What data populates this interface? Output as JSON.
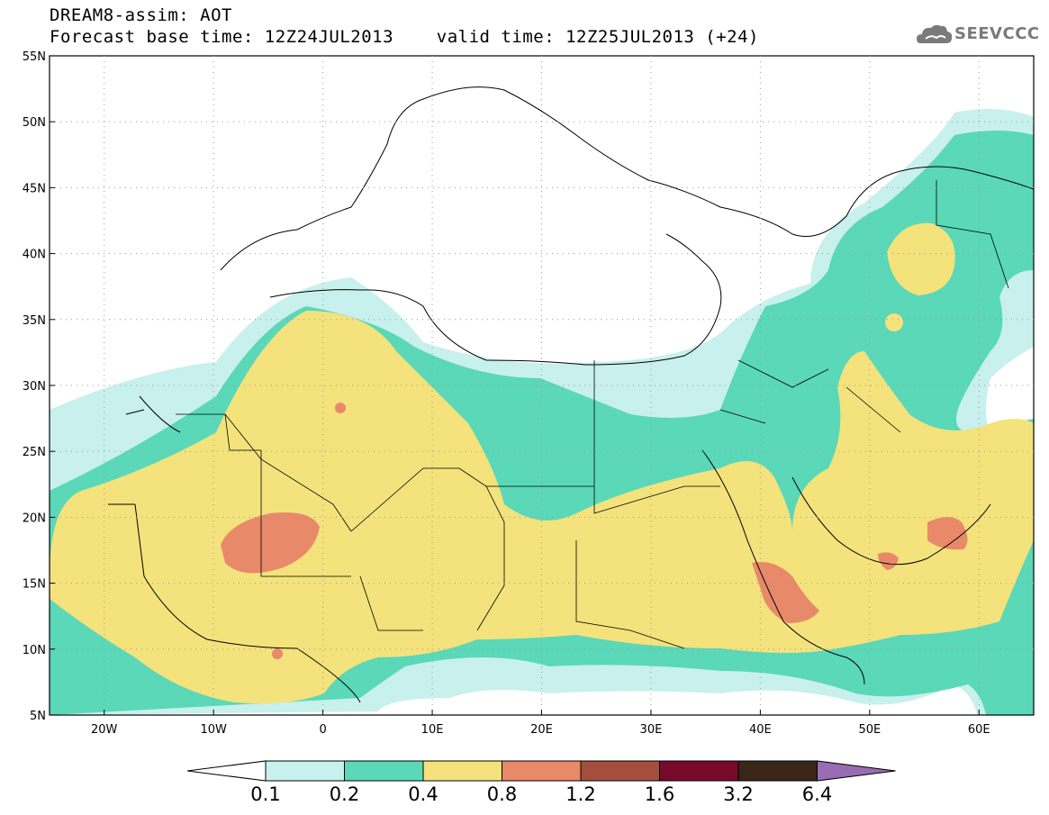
{
  "header": {
    "title_line1": "DREAM8-assim: AOT",
    "title_line2": "Forecast base time: 12Z24JUL2013    valid time: 12Z25JUL2013 (+24)"
  },
  "logo": {
    "text": "SEEVCCC",
    "icon": "cloud-icon"
  },
  "map": {
    "lat_ticks": [
      "55N",
      "50N",
      "45N",
      "40N",
      "35N",
      "30N",
      "25N",
      "20N",
      "15N",
      "10N",
      "5N"
    ],
    "lon_ticks": [
      "20W",
      "10W",
      "0",
      "10E",
      "20E",
      "30E",
      "40E",
      "50E",
      "60E"
    ],
    "lat_range": [
      5,
      55
    ],
    "lon_range": [
      -25,
      65
    ],
    "grid": true
  },
  "colorbar": {
    "labels": [
      "0.1",
      "0.2",
      "0.4",
      "0.8",
      "1.2",
      "1.6",
      "3.2",
      "6.4"
    ],
    "colors": [
      "#ffffff",
      "#c8f0ec",
      "#5ad8b8",
      "#f4e27c",
      "#e8896a",
      "#a44e3e",
      "#780a2c",
      "#3a2616",
      "#9a6cb4"
    ]
  }
}
